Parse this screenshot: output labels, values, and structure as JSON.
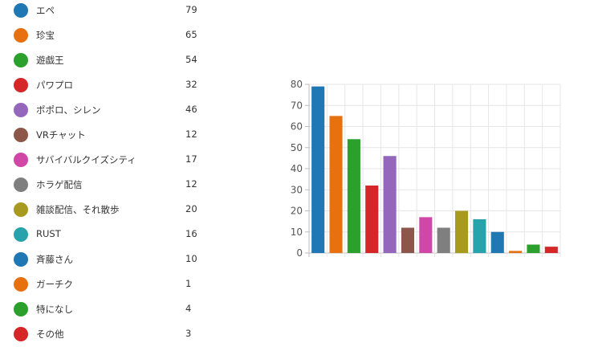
{
  "chart_data": {
    "type": "bar",
    "categories": [
      "エペ",
      "珍宝",
      "遊戯王",
      "パワプロ",
      "ポポロ、シレン",
      "VRチャット",
      "サバイバルクイズシティ",
      "ホラゲ配信",
      "雑談配信、それ散歩",
      "RUST",
      "斉藤さん",
      "ガーチク",
      "特になし",
      "その他"
    ],
    "values": [
      79,
      65,
      54,
      32,
      46,
      12,
      17,
      12,
      20,
      16,
      10,
      1,
      4,
      3
    ],
    "colors": [
      "#1f77b4",
      "#e8710f",
      "#2ca02c",
      "#d62728",
      "#9467bd",
      "#8c564b",
      "#d147a8",
      "#7f7f7f",
      "#a89a1e",
      "#27a3ac",
      "#1f77b4",
      "#e8710f",
      "#2ca02c",
      "#d62728"
    ],
    "ylim": [
      0,
      80
    ],
    "yticks": [
      0,
      10,
      20,
      30,
      40,
      50,
      60,
      70,
      80
    ],
    "grid": true,
    "legend_placement": "left"
  }
}
